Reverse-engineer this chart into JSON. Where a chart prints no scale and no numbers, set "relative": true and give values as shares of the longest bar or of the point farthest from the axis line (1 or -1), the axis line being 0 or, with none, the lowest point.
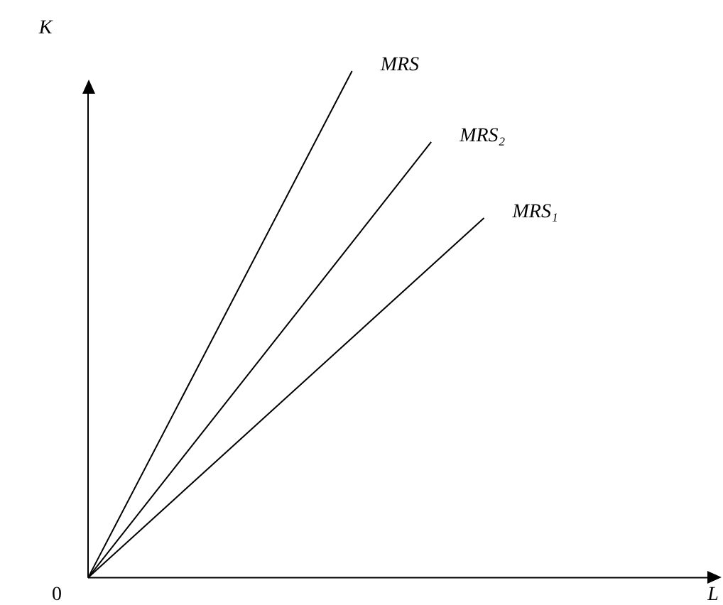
{
  "chart_data": {
    "type": "line",
    "relative": true,
    "xlabel": "L",
    "ylabel": "K",
    "annotations": [
      "0"
    ],
    "legend": false,
    "marker": "none",
    "line_style": "solid",
    "categories": [
      null,
      null,
      null,
      null,
      null,
      null,
      null,
      null,
      null,
      null,
      null,
      null,
      null,
      null,
      null,
      null,
      null,
      null,
      null,
      null,
      null,
      null,
      null,
      null,
      null
    ],
    "series": [
      {
        "name": "MRS",
        "color": "#000000",
        "values": [
          0,
          null,
          null,
          null,
          null,
          null,
          null,
          null,
          null,
          null,
          1,
          null,
          null,
          null,
          null,
          null,
          null,
          null,
          null,
          null,
          null,
          null,
          null,
          null,
          null
        ]
      },
      {
        "name": "MRS₂",
        "color": "#000000",
        "values": [
          0,
          null,
          null,
          null,
          null,
          null,
          null,
          null,
          null,
          null,
          null,
          null,
          null,
          0.86,
          null,
          null,
          null,
          null,
          null,
          null,
          null,
          null,
          null,
          null,
          null
        ]
      },
      {
        "name": "MRS₁",
        "color": "#000000",
        "values": [
          0,
          null,
          null,
          null,
          null,
          null,
          null,
          null,
          null,
          null,
          null,
          null,
          null,
          null,
          null,
          0.71,
          null,
          null,
          null,
          null,
          null,
          null,
          null,
          null,
          null
        ]
      }
    ]
  }
}
